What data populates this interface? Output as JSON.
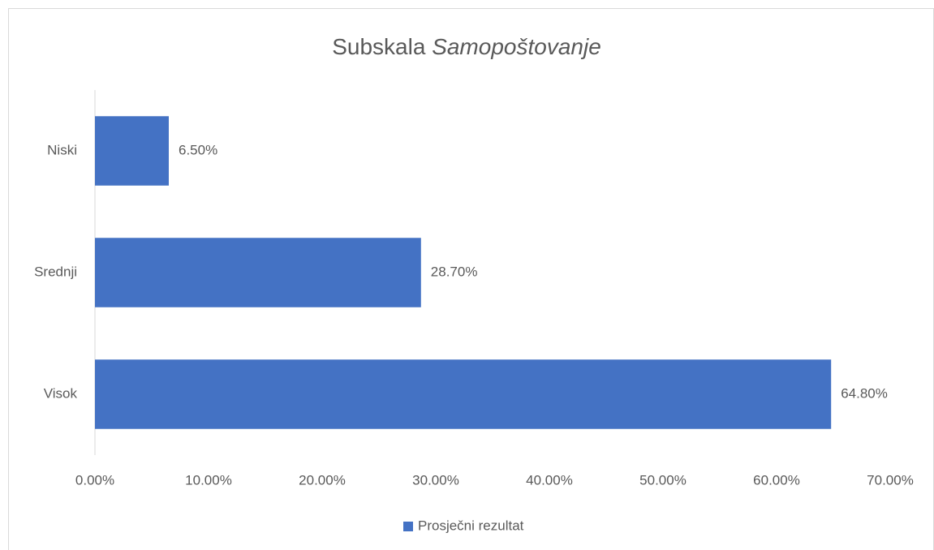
{
  "chart_data": {
    "type": "bar",
    "orientation": "horizontal",
    "title": [
      "Subskala",
      "Samopoštovanje"
    ],
    "categories": [
      "Niski",
      "Srednji",
      "Visok"
    ],
    "series": [
      {
        "name": "Prosječni rezultat",
        "color": "#4472c4",
        "values": [
          6.5,
          28.7,
          64.8
        ],
        "value_labels": [
          "6.50%",
          "28.70%",
          "64.80%"
        ]
      }
    ],
    "xlim": [
      0,
      70
    ],
    "xticks": [
      {
        "value": 0,
        "label": "0.00%"
      },
      {
        "value": 10,
        "label": "10.00%"
      },
      {
        "value": 20,
        "label": "20.00%"
      },
      {
        "value": 30,
        "label": "30.00%"
      },
      {
        "value": 40,
        "label": "40.00%"
      },
      {
        "value": 50,
        "label": "50.00%"
      },
      {
        "value": 60,
        "label": "60.00%"
      },
      {
        "value": 70,
        "label": "70.00%"
      }
    ],
    "grid": false,
    "legend": "bottom"
  }
}
